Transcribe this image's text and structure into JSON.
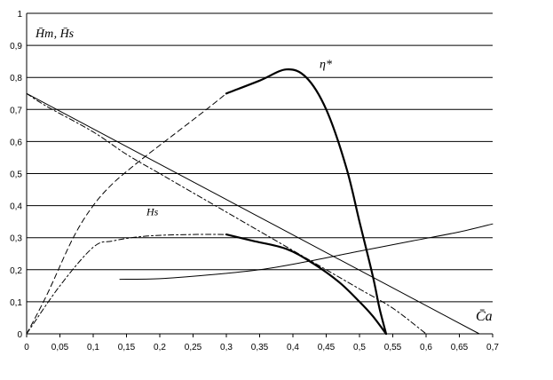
{
  "chart_data": {
    "type": "line",
    "title": "",
    "xlabel": "C̄a",
    "ylabel": "H̄т, H̄s",
    "xlim": [
      0,
      0.7
    ],
    "ylim": [
      0,
      1
    ],
    "grid": "horizontal",
    "x_ticks": [
      "0",
      "0,05",
      "0,1",
      "0,15",
      "0,2",
      "0,25",
      "0,3",
      "0,35",
      "0,4",
      "0,45",
      "0,5",
      "0,55",
      "0,6",
      "0,65",
      "0,7"
    ],
    "y_ticks": [
      "0",
      "0,1",
      "0,2",
      "0,3",
      "0,4",
      "0,5",
      "0,6",
      "0,7",
      "0,8",
      "0,9",
      "1"
    ],
    "annotations": [
      {
        "text": "η*",
        "x": 0.44,
        "y": 0.83
      },
      {
        "text": "Hs",
        "x": 0.18,
        "y": 0.37
      }
    ],
    "series": [
      {
        "style": "thin",
        "x": [
          0,
          0.68
        ],
        "y": [
          0.75,
          0
        ]
      },
      {
        "style": "dashdot",
        "x": [
          0,
          0.03,
          0.1,
          0.15,
          0.2,
          0.25,
          0.3,
          0.35,
          0.4,
          0.45,
          0.5,
          0.55,
          0.6
        ],
        "y": [
          0.75,
          0.71,
          0.63,
          0.56,
          0.5,
          0.44,
          0.38,
          0.32,
          0.26,
          0.2,
          0.14,
          0.08,
          0
        ]
      },
      {
        "style": "dashed",
        "x": [
          0,
          0.03,
          0.07,
          0.1,
          0.13,
          0.17,
          0.22,
          0.27,
          0.3
        ],
        "y": [
          0,
          0.12,
          0.3,
          0.4,
          0.47,
          0.54,
          0.62,
          0.7,
          0.75
        ]
      },
      {
        "style": "dashdot",
        "x": [
          0,
          0.05,
          0.1,
          0.13,
          0.18,
          0.25,
          0.3
        ],
        "y": [
          0,
          0.15,
          0.27,
          0.29,
          0.305,
          0.31,
          0.31
        ]
      },
      {
        "style": "bold",
        "x": [
          0.3,
          0.35,
          0.39,
          0.42,
          0.45,
          0.48,
          0.5,
          0.52,
          0.53,
          0.54
        ],
        "y": [
          0.75,
          0.79,
          0.825,
          0.8,
          0.7,
          0.52,
          0.35,
          0.18,
          0.08,
          0
        ]
      },
      {
        "style": "bold",
        "x": [
          0.3,
          0.34,
          0.39,
          0.43,
          0.47,
          0.5,
          0.52,
          0.54
        ],
        "y": [
          0.31,
          0.29,
          0.265,
          0.22,
          0.16,
          0.1,
          0.055,
          0
        ]
      },
      {
        "style": "thin",
        "x": [
          0.14,
          0.2,
          0.27,
          0.35,
          0.42,
          0.5,
          0.58,
          0.65,
          0.7
        ],
        "y": [
          0.17,
          0.172,
          0.183,
          0.2,
          0.225,
          0.258,
          0.29,
          0.318,
          0.343
        ]
      }
    ]
  }
}
